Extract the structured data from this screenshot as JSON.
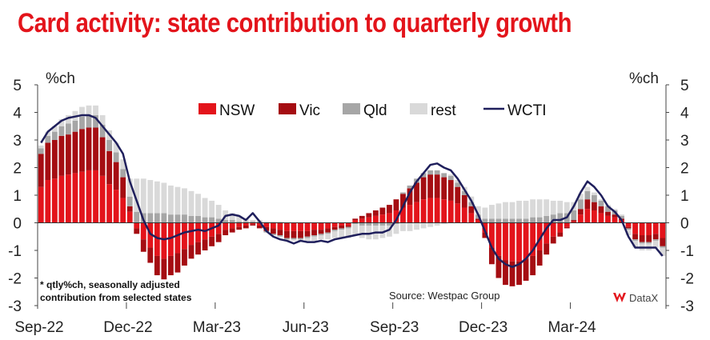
{
  "chart_data": {
    "type": "bar",
    "title": "Card activity: state contribution to quarterly growth",
    "ylabel_left": "%ch",
    "ylabel_right": "%ch",
    "ylim": [
      -3,
      5
    ],
    "yticks": [
      5,
      4,
      3,
      2,
      1,
      0,
      -1,
      -2,
      -3
    ],
    "xticks": [
      "Sep-22",
      "Dec-22",
      "Mar-23",
      "Jun-23",
      "Sep-23",
      "Dec-23",
      "Mar-24"
    ],
    "xtick_index": [
      0,
      13,
      26,
      39,
      52,
      65,
      78
    ],
    "legend": [
      {
        "name": "NSW",
        "color": "#e3141b",
        "kind": "bar"
      },
      {
        "name": "Vic",
        "color": "#a50d12",
        "kind": "bar"
      },
      {
        "name": "Qld",
        "color": "#a6a6a6",
        "kind": "bar"
      },
      {
        "name": "rest",
        "color": "#d9d9d9",
        "kind": "bar"
      },
      {
        "name": "WCTI",
        "color": "#1f1f5c",
        "kind": "line"
      }
    ],
    "note_line1": "* qtly%ch, seasonally adjusted",
    "note_line2": "contribution from selected states",
    "source": "Source: Westpac Group",
    "brand": "DataX",
    "wcti": [
      2.9,
      3.3,
      3.5,
      3.7,
      3.8,
      3.85,
      3.9,
      3.9,
      3.8,
      3.5,
      3.2,
      2.9,
      2.5,
      1.5,
      0.8,
      0.1,
      -0.4,
      -0.55,
      -0.6,
      -0.55,
      -0.45,
      -0.35,
      -0.3,
      -0.25,
      -0.3,
      -0.2,
      -0.1,
      0.25,
      0.3,
      0.25,
      0.1,
      0.35,
      0.05,
      -0.3,
      -0.5,
      -0.6,
      -0.65,
      -0.75,
      -0.65,
      -0.7,
      -0.7,
      -0.65,
      -0.7,
      -0.6,
      -0.55,
      -0.5,
      -0.45,
      -0.4,
      -0.4,
      -0.35,
      -0.35,
      -0.25,
      0.1,
      0.6,
      1.1,
      1.5,
      1.8,
      2.1,
      2.15,
      2.0,
      1.9,
      1.6,
      1.2,
      0.8,
      0.3,
      -0.3,
      -0.9,
      -1.3,
      -1.5,
      -1.6,
      -1.5,
      -1.3,
      -1.0,
      -0.6,
      -0.2,
      0.1,
      0.1,
      0.2,
      0.6,
      1.1,
      1.5,
      1.3,
      1.0,
      0.6,
      0.4,
      0.1,
      -0.5,
      -0.9,
      -0.9,
      -0.9,
      -0.9,
      -1.2
    ],
    "series": [
      {
        "name": "NSW",
        "values": [
          1.3,
          1.55,
          1.6,
          1.7,
          1.75,
          1.8,
          1.85,
          1.9,
          1.9,
          1.7,
          1.4,
          1.2,
          0.9,
          0.4,
          -0.2,
          -0.6,
          -0.9,
          -1.2,
          -1.3,
          -1.2,
          -1.1,
          -0.95,
          -0.8,
          -0.7,
          -0.6,
          -0.5,
          -0.4,
          -0.25,
          -0.2,
          -0.15,
          -0.1,
          -0.05,
          -0.1,
          -0.15,
          -0.2,
          -0.25,
          -0.3,
          -0.3,
          -0.3,
          -0.3,
          -0.25,
          -0.25,
          -0.2,
          -0.15,
          -0.1,
          -0.1,
          0.1,
          0.15,
          0.2,
          0.25,
          0.3,
          0.35,
          0.45,
          0.55,
          0.65,
          0.75,
          0.85,
          0.9,
          0.9,
          0.85,
          0.8,
          0.7,
          0.55,
          0.35,
          0.1,
          -0.35,
          -0.9,
          -1.2,
          -1.35,
          -1.4,
          -1.4,
          -1.3,
          -1.2,
          -1.0,
          -0.75,
          -0.5,
          -0.35,
          -0.15,
          0.05,
          0.3,
          0.5,
          0.45,
          0.35,
          0.25,
          0.2,
          0.1,
          -0.15,
          -0.4,
          -0.45,
          -0.45,
          -0.4,
          -0.55
        ]
      },
      {
        "name": "Vic",
        "values": [
          1.2,
          1.35,
          1.4,
          1.45,
          1.45,
          1.5,
          1.55,
          1.55,
          1.55,
          1.4,
          1.2,
          1.0,
          0.75,
          0.2,
          -0.2,
          -0.45,
          -0.55,
          -0.7,
          -0.75,
          -0.7,
          -0.7,
          -0.6,
          -0.5,
          -0.45,
          -0.4,
          -0.35,
          -0.3,
          -0.2,
          -0.15,
          -0.1,
          -0.1,
          -0.05,
          -0.1,
          -0.15,
          -0.2,
          -0.2,
          -0.25,
          -0.25,
          -0.25,
          -0.2,
          -0.2,
          -0.15,
          -0.15,
          -0.1,
          -0.1,
          -0.05,
          0.05,
          0.1,
          0.15,
          0.2,
          0.25,
          0.3,
          0.4,
          0.5,
          0.6,
          0.7,
          0.8,
          0.85,
          0.85,
          0.8,
          0.75,
          0.6,
          0.45,
          0.25,
          0.05,
          -0.2,
          -0.6,
          -0.8,
          -0.9,
          -0.9,
          -0.85,
          -0.8,
          -0.7,
          -0.55,
          -0.4,
          -0.25,
          -0.15,
          -0.05,
          0.05,
          0.2,
          0.35,
          0.3,
          0.25,
          0.15,
          0.1,
          0.05,
          -0.05,
          -0.2,
          -0.25,
          -0.25,
          -0.2,
          -0.3
        ]
      },
      {
        "name": "Qld",
        "values": [
          0.2,
          0.25,
          0.3,
          0.35,
          0.4,
          0.4,
          0.45,
          0.45,
          0.45,
          0.45,
          0.4,
          0.35,
          0.3,
          0.35,
          0.4,
          0.35,
          0.35,
          0.35,
          0.35,
          0.3,
          0.3,
          0.3,
          0.25,
          0.25,
          0.2,
          0.2,
          0.15,
          0.1,
          0.1,
          0.05,
          0.05,
          0.05,
          0.05,
          -0.05,
          -0.05,
          -0.05,
          -0.05,
          -0.05,
          -0.05,
          -0.05,
          -0.05,
          -0.05,
          -0.05,
          -0.05,
          -0.05,
          -0.05,
          -0.05,
          -0.1,
          -0.1,
          -0.1,
          -0.1,
          -0.1,
          -0.05,
          0.05,
          0.1,
          0.15,
          0.15,
          0.15,
          0.15,
          0.15,
          0.15,
          0.15,
          0.15,
          0.15,
          0.15,
          0.15,
          0.15,
          0.15,
          0.15,
          0.15,
          0.15,
          0.15,
          0.2,
          0.2,
          0.25,
          0.3,
          0.35,
          0.35,
          0.35,
          0.35,
          0.3,
          0.25,
          0.2,
          0.2,
          0.15,
          0.1,
          -0.05,
          -0.05,
          -0.05,
          -0.05,
          -0.05,
          -0.05
        ]
      },
      {
        "name": "rest",
        "values": [
          0.1,
          0.15,
          0.2,
          0.25,
          0.3,
          0.35,
          0.35,
          0.35,
          0.35,
          0.35,
          0.35,
          0.35,
          0.35,
          0.65,
          1.2,
          1.25,
          1.2,
          1.15,
          1.1,
          1.05,
          1.0,
          0.95,
          0.9,
          0.8,
          0.7,
          0.6,
          0.5,
          0.35,
          0.25,
          0.2,
          0.1,
          0.05,
          0.05,
          0.05,
          0.05,
          0.05,
          -0.05,
          -0.05,
          -0.1,
          -0.1,
          -0.15,
          -0.15,
          -0.2,
          -0.25,
          -0.3,
          -0.35,
          -0.4,
          -0.45,
          -0.5,
          -0.5,
          -0.45,
          -0.4,
          -0.35,
          -0.3,
          -0.3,
          -0.25,
          -0.2,
          -0.15,
          -0.1,
          -0.05,
          0.05,
          0.1,
          0.15,
          0.2,
          0.3,
          0.4,
          0.5,
          0.55,
          0.6,
          0.6,
          0.65,
          0.65,
          0.65,
          0.65,
          0.6,
          0.5,
          0.45,
          0.4,
          0.3,
          0.2,
          0.15,
          0.1,
          0.05,
          0.05,
          0.05,
          0.05,
          -0.2,
          -0.25,
          -0.25,
          -0.25,
          -0.25,
          -0.3
        ]
      }
    ]
  }
}
